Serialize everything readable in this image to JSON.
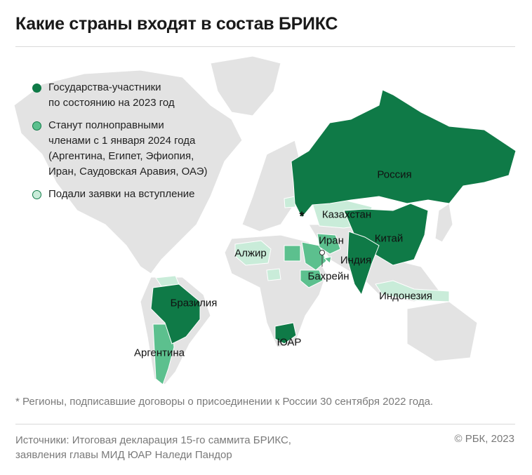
{
  "title": "Какие страны входят в состав БРИКС",
  "colors": {
    "member": "#0f7a47",
    "joining_2024": "#5cc08e",
    "applied": "#c9ecd9",
    "other": "#e3e3e3"
  },
  "legend": [
    {
      "label_line1": "Государства-участники",
      "label_line2": "по состоянию на 2023 год",
      "status": "member"
    },
    {
      "label_line1": "Станут полноправными",
      "label_line2": "членами с 1 января 2024 года",
      "label_line3": "(Аргентина, Египет, Эфиопия,",
      "label_line4": "Иран, Саудовская Аравия, ОАЭ)",
      "status": "joining_2024"
    },
    {
      "label_line1": "Подали заявки на вступление",
      "status": "applied"
    }
  ],
  "map_labels": {
    "russia": "Россия",
    "kazakhstan": "Казахстан",
    "china": "Китай",
    "iran": "Иран",
    "india": "Индия",
    "algeria": "Алжир",
    "bahrain": "Бахрейн",
    "indonesia": "Индонезия",
    "brazil": "Бразилия",
    "argentina": "Аргентина",
    "south_africa": "ЮАР",
    "asterisk": "*"
  },
  "footnote": "* Регионы, подписавшие договоры о присоединении к России 30 сентября 2022 года.",
  "sources_line1": "Источники: Итоговая декларация 15-го саммита БРИКС,",
  "sources_line2": "заявления главы МИД ЮАР Наледи Пандор",
  "copyright": "© РБК, 2023"
}
